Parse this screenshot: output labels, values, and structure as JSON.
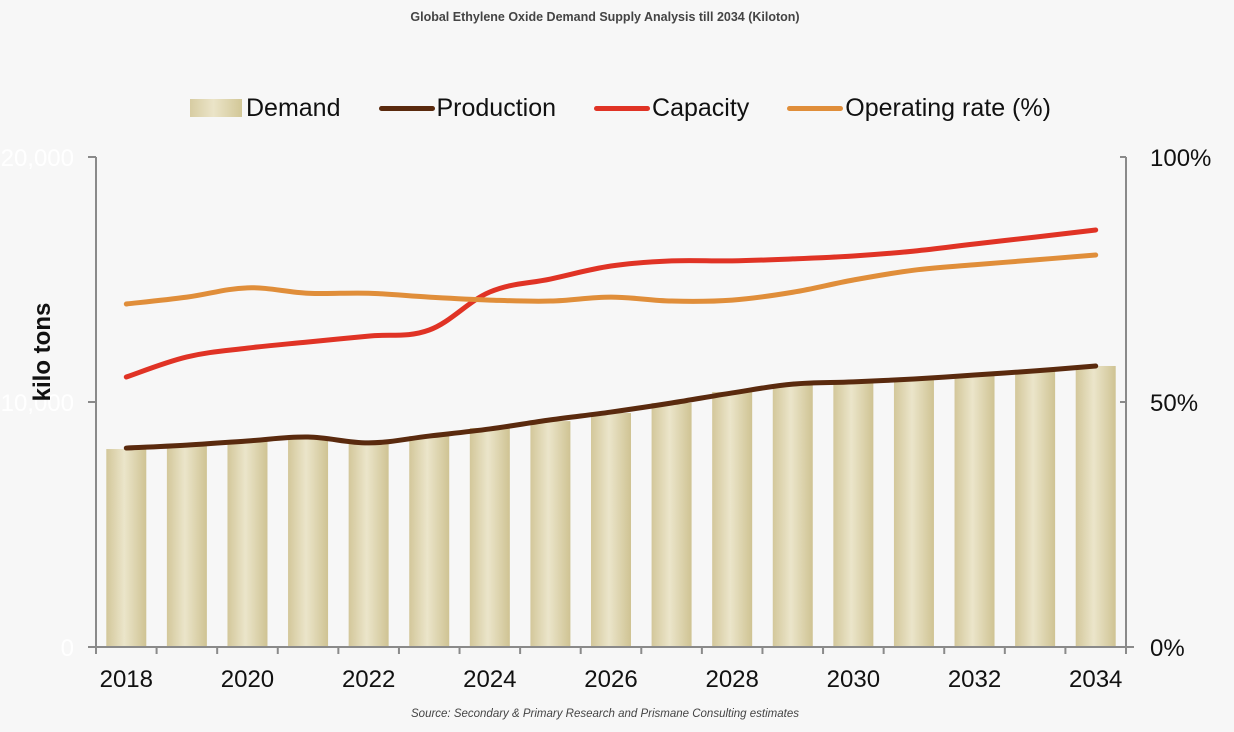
{
  "chart_data": {
    "type": "bar",
    "title": "Global Ethylene Oxide Demand Supply Analysis till 2034 (Kiloton)",
    "xlabel": "",
    "ylabel": "kilo tons",
    "y2label": "",
    "ylim": [
      0,
      20000
    ],
    "y2lim": [
      0,
      100
    ],
    "yticks": [
      "0",
      "10,000",
      "20,000"
    ],
    "y2ticks": [
      "0%",
      "50%",
      "100%"
    ],
    "grid": false,
    "legend_position": "top",
    "categories": [
      "2018",
      "2019",
      "2020",
      "2021",
      "2022",
      "2023",
      "2024",
      "2025",
      "2026",
      "2027",
      "2028",
      "2029",
      "2030",
      "2031",
      "2032",
      "2033",
      "2034"
    ],
    "x_tick_labels": [
      "2018",
      "2020",
      "2022",
      "2024",
      "2026",
      "2028",
      "2030",
      "2032",
      "2034"
    ],
    "series": [
      {
        "name": "Demand",
        "type": "bar",
        "axis": "left",
        "color": "#ddd3ad",
        "values": [
          8080,
          8200,
          8410,
          8530,
          8410,
          8610,
          8940,
          9220,
          9550,
          9960,
          10410,
          10690,
          10780,
          10900,
          11060,
          11270,
          11470
        ]
      },
      {
        "name": "Production",
        "type": "line",
        "axis": "left",
        "color": "#5a2a0e",
        "values": [
          8120,
          8240,
          8410,
          8570,
          8330,
          8610,
          8900,
          9270,
          9590,
          9960,
          10370,
          10730,
          10820,
          10940,
          11100,
          11270,
          11470
        ]
      },
      {
        "name": "Capacity",
        "type": "line",
        "axis": "left",
        "color": "#e03325",
        "values": [
          11020,
          11840,
          12200,
          12450,
          12690,
          12940,
          14490,
          15020,
          15550,
          15760,
          15760,
          15840,
          15960,
          16160,
          16450,
          16730,
          17020
        ]
      },
      {
        "name": "Operating rate (%)",
        "type": "line",
        "axis": "right",
        "color": "#e08e3a",
        "values": [
          70.0,
          71.4,
          73.3,
          72.2,
          72.2,
          71.4,
          70.8,
          70.6,
          71.4,
          70.6,
          70.8,
          72.4,
          74.9,
          76.9,
          78.0,
          79.0,
          80.0
        ]
      }
    ],
    "source": "Source: Secondary & Primary Research and Prismane Consulting estimates"
  }
}
